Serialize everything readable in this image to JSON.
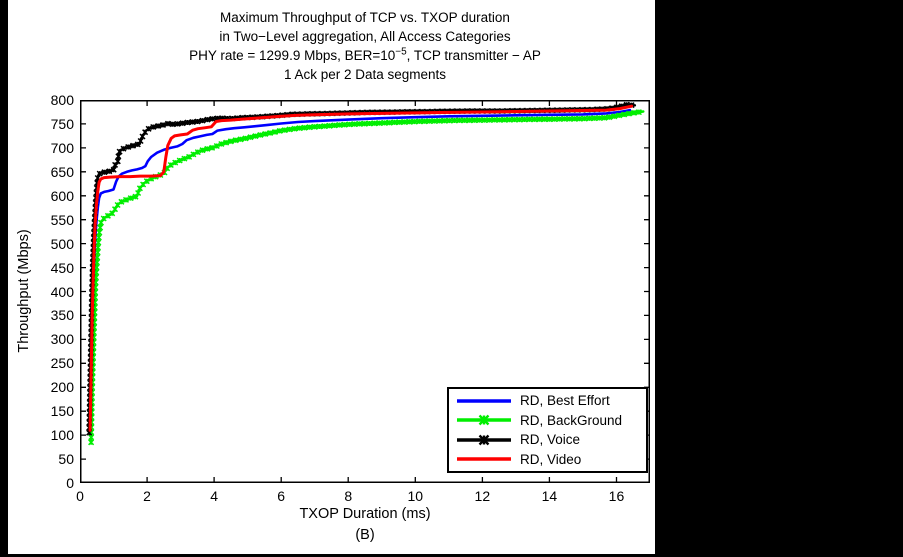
{
  "chart_data": {
    "type": "line",
    "title_lines": [
      "Maximum Throughput of TCP vs. TXOP duration",
      "in Two−Level aggregation, All Access Categories"
    ],
    "title_ber": {
      "prefix": "PHY rate = 1299.9 Mbps, BER=10",
      "exponent": "−5",
      "suffix": ", TCP transmitter − AP"
    },
    "title_line4": "1 Ack per 2 Data segments",
    "xlabel": "TXOP Duration (ms)",
    "sublabel": "(B)",
    "ylabel": "Throughput (Mbps)",
    "xlim": [
      0,
      17
    ],
    "ylim": [
      0,
      800
    ],
    "xticks": [
      0,
      2,
      4,
      6,
      8,
      10,
      12,
      14,
      16
    ],
    "yticks": [
      0,
      50,
      100,
      150,
      200,
      250,
      300,
      350,
      400,
      450,
      500,
      550,
      600,
      650,
      700,
      750,
      800
    ],
    "grid": false,
    "legend_position": "bottom-right-inside",
    "axes_color": "#000000",
    "background_color": "#ffffff",
    "frame_color": "#000000",
    "series": [
      {
        "name": "RD, Best Effort",
        "color": "#0000ff",
        "marker": false,
        "width": 2.6,
        "points": [
          [
            0.3,
            100
          ],
          [
            0.32,
            170
          ],
          [
            0.34,
            240
          ],
          [
            0.36,
            310
          ],
          [
            0.39,
            380
          ],
          [
            0.42,
            450
          ],
          [
            0.45,
            505
          ],
          [
            0.49,
            545
          ],
          [
            0.53,
            575
          ],
          [
            0.57,
            595
          ],
          [
            0.62,
            605
          ],
          [
            0.72,
            608
          ],
          [
            0.85,
            610
          ],
          [
            1.0,
            613
          ],
          [
            1.08,
            630
          ],
          [
            1.15,
            640
          ],
          [
            1.25,
            646
          ],
          [
            1.4,
            650
          ],
          [
            1.55,
            653
          ],
          [
            1.7,
            655
          ],
          [
            1.85,
            658
          ],
          [
            1.95,
            662
          ],
          [
            2.02,
            672
          ],
          [
            2.12,
            681
          ],
          [
            2.3,
            690
          ],
          [
            2.5,
            696
          ],
          [
            2.7,
            700
          ],
          [
            2.9,
            703
          ],
          [
            3.05,
            708
          ],
          [
            3.18,
            716
          ],
          [
            3.38,
            721
          ],
          [
            3.58,
            724
          ],
          [
            3.78,
            727
          ],
          [
            3.95,
            729
          ],
          [
            4.1,
            736
          ],
          [
            4.35,
            739
          ],
          [
            4.6,
            741
          ],
          [
            4.9,
            743
          ],
          [
            5.2,
            745
          ],
          [
            5.6,
            748
          ],
          [
            6.0,
            751
          ],
          [
            6.5,
            754
          ],
          [
            7.0,
            756
          ],
          [
            8.0,
            759
          ],
          [
            9.0,
            762
          ],
          [
            10.0,
            764
          ],
          [
            11.0,
            766
          ],
          [
            12.0,
            767
          ],
          [
            13.0,
            768
          ],
          [
            14.0,
            769
          ],
          [
            15.0,
            770
          ],
          [
            15.7,
            772
          ],
          [
            16.1,
            775
          ],
          [
            16.4,
            779
          ]
        ]
      },
      {
        "name": "RD, BackGround",
        "color": "#00ee00",
        "marker": true,
        "width": 2.4,
        "points": [
          [
            0.33,
            85
          ],
          [
            0.35,
            150
          ],
          [
            0.37,
            215
          ],
          [
            0.4,
            280
          ],
          [
            0.43,
            345
          ],
          [
            0.46,
            410
          ],
          [
            0.5,
            455
          ],
          [
            0.54,
            495
          ],
          [
            0.58,
            525
          ],
          [
            0.63,
            545
          ],
          [
            0.7,
            552
          ],
          [
            0.8,
            557
          ],
          [
            0.92,
            561
          ],
          [
            1.0,
            566
          ],
          [
            1.08,
            577
          ],
          [
            1.15,
            583
          ],
          [
            1.25,
            588
          ],
          [
            1.4,
            592
          ],
          [
            1.55,
            596
          ],
          [
            1.7,
            599
          ],
          [
            1.78,
            615
          ],
          [
            1.86,
            622
          ],
          [
            1.96,
            629
          ],
          [
            2.1,
            635
          ],
          [
            2.3,
            641
          ],
          [
            2.5,
            646
          ],
          [
            2.58,
            656
          ],
          [
            2.7,
            664
          ],
          [
            2.86,
            670
          ],
          [
            3.05,
            676
          ],
          [
            3.25,
            681
          ],
          [
            3.42,
            688
          ],
          [
            3.6,
            694
          ],
          [
            3.8,
            698
          ],
          [
            4.0,
            701
          ],
          [
            4.16,
            707
          ],
          [
            4.4,
            712
          ],
          [
            4.65,
            716
          ],
          [
            4.95,
            720
          ],
          [
            5.25,
            725
          ],
          [
            5.6,
            730
          ],
          [
            6.0,
            736
          ],
          [
            6.5,
            741
          ],
          [
            7.0,
            744
          ],
          [
            8.0,
            749
          ],
          [
            9.0,
            752
          ],
          [
            10.0,
            755
          ],
          [
            11.0,
            757
          ],
          [
            12.0,
            758
          ],
          [
            13.0,
            759
          ],
          [
            14.0,
            760
          ],
          [
            15.0,
            761
          ],
          [
            15.7,
            763
          ],
          [
            16.1,
            768
          ],
          [
            16.4,
            772
          ],
          [
            16.8,
            776
          ]
        ]
      },
      {
        "name": "RD, Voice",
        "color": "#000000",
        "marker": true,
        "width": 2.4,
        "points": [
          [
            0.27,
            105
          ],
          [
            0.29,
            170
          ],
          [
            0.31,
            240
          ],
          [
            0.33,
            310
          ],
          [
            0.35,
            380
          ],
          [
            0.37,
            440
          ],
          [
            0.4,
            500
          ],
          [
            0.43,
            545
          ],
          [
            0.46,
            580
          ],
          [
            0.49,
            610
          ],
          [
            0.52,
            635
          ],
          [
            0.56,
            645
          ],
          [
            0.62,
            648
          ],
          [
            0.8,
            650
          ],
          [
            1.0,
            653
          ],
          [
            1.05,
            665
          ],
          [
            1.12,
            668
          ],
          [
            1.16,
            690
          ],
          [
            1.22,
            696
          ],
          [
            1.35,
            700
          ],
          [
            1.5,
            703
          ],
          [
            1.65,
            706
          ],
          [
            1.78,
            708
          ],
          [
            1.83,
            720
          ],
          [
            1.9,
            728
          ],
          [
            1.97,
            736
          ],
          [
            2.07,
            741
          ],
          [
            2.2,
            744
          ],
          [
            2.35,
            746
          ],
          [
            2.5,
            748
          ],
          [
            2.65,
            751
          ],
          [
            2.8,
            749
          ],
          [
            3.0,
            751
          ],
          [
            3.2,
            753
          ],
          [
            3.5,
            755
          ],
          [
            3.8,
            759
          ],
          [
            4.0,
            761
          ],
          [
            4.2,
            762
          ],
          [
            4.5,
            761
          ],
          [
            4.8,
            763
          ],
          [
            5.2,
            764
          ],
          [
            5.6,
            766
          ],
          [
            6.0,
            768
          ],
          [
            6.3,
            770
          ],
          [
            6.8,
            771
          ],
          [
            7.5,
            772
          ],
          [
            8.5,
            774
          ],
          [
            9.5,
            775
          ],
          [
            10.5,
            776
          ],
          [
            11.5,
            777
          ],
          [
            12.5,
            777
          ],
          [
            13.5,
            778
          ],
          [
            14.5,
            779
          ],
          [
            15.3,
            780
          ],
          [
            15.8,
            782
          ],
          [
            16.1,
            786
          ],
          [
            16.3,
            790
          ],
          [
            16.55,
            789
          ]
        ]
      },
      {
        "name": "RD, Video",
        "color": "#ff0000",
        "marker": false,
        "width": 3,
        "points": [
          [
            0.3,
            110
          ],
          [
            0.32,
            180
          ],
          [
            0.34,
            260
          ],
          [
            0.36,
            340
          ],
          [
            0.39,
            420
          ],
          [
            0.42,
            490
          ],
          [
            0.45,
            540
          ],
          [
            0.49,
            580
          ],
          [
            0.53,
            610
          ],
          [
            0.57,
            628
          ],
          [
            0.62,
            635
          ],
          [
            0.72,
            638
          ],
          [
            0.9,
            639
          ],
          [
            1.2,
            640
          ],
          [
            1.5,
            640
          ],
          [
            1.8,
            641
          ],
          [
            2.1,
            641
          ],
          [
            2.4,
            642
          ],
          [
            2.5,
            650
          ],
          [
            2.56,
            680
          ],
          [
            2.62,
            705
          ],
          [
            2.72,
            720
          ],
          [
            2.82,
            725
          ],
          [
            3.0,
            727
          ],
          [
            3.2,
            729
          ],
          [
            3.36,
            737
          ],
          [
            3.52,
            740
          ],
          [
            3.72,
            742
          ],
          [
            3.92,
            744
          ],
          [
            4.06,
            755
          ],
          [
            4.22,
            757
          ],
          [
            4.5,
            758
          ],
          [
            4.8,
            760
          ],
          [
            5.2,
            762
          ],
          [
            5.6,
            764
          ],
          [
            6.0,
            766
          ],
          [
            6.5,
            768
          ],
          [
            7.0,
            769
          ],
          [
            8.0,
            771
          ],
          [
            9.0,
            772
          ],
          [
            10.0,
            773
          ],
          [
            11.0,
            774
          ],
          [
            12.0,
            775
          ],
          [
            13.0,
            776
          ],
          [
            14.0,
            777
          ],
          [
            15.0,
            778
          ],
          [
            15.7,
            779
          ],
          [
            16.1,
            782
          ],
          [
            16.45,
            787
          ]
        ]
      }
    ]
  }
}
